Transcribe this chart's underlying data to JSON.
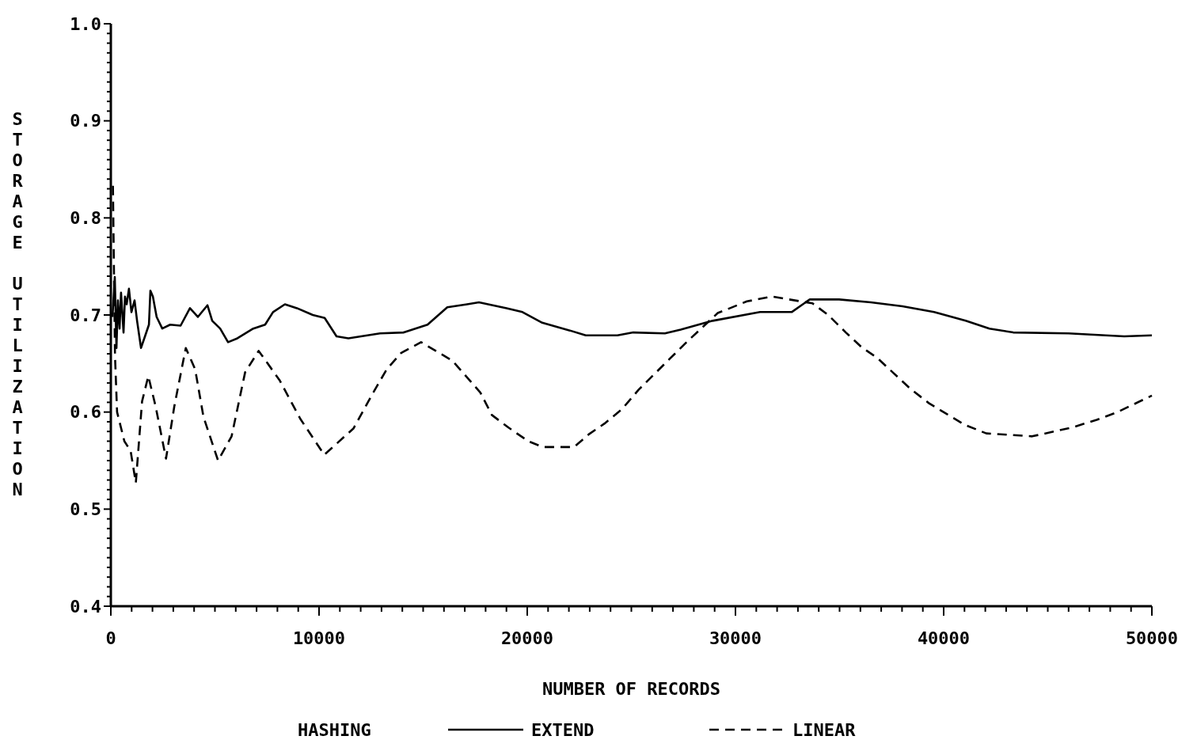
{
  "chart_data": {
    "type": "line",
    "xlabel": "NUMBER OF RECORDS",
    "ylabel": "STORAGE UTILIZATION",
    "legend_title": "HASHING",
    "legend": "bottom",
    "xlim": [
      0,
      50000
    ],
    "ylim": [
      0.4,
      1.0
    ],
    "xticks": [
      0,
      {
        "value": 1000,
        "label": null
      },
      {
        "value": 2000,
        "label": null
      },
      {
        "value": 3000,
        "label": null
      },
      {
        "value": 4000,
        "label": null
      },
      {
        "value": 5000,
        "label": null
      },
      {
        "value": 6000,
        "label": null
      },
      {
        "value": 7000,
        "label": null
      },
      {
        "value": 8000,
        "label": null
      },
      {
        "value": 9000,
        "label": null
      },
      10000,
      {
        "value": 11000,
        "label": null
      },
      {
        "value": 12000,
        "label": null
      },
      {
        "value": 13000,
        "label": null
      },
      {
        "value": 14000,
        "label": null
      },
      {
        "value": 15000,
        "label": null
      },
      {
        "value": 16000,
        "label": null
      },
      {
        "value": 17000,
        "label": null
      },
      {
        "value": 18000,
        "label": null
      },
      {
        "value": 19000,
        "label": null
      },
      20000,
      {
        "value": 21000,
        "label": null
      },
      {
        "value": 22000,
        "label": null
      },
      {
        "value": 23000,
        "label": null
      },
      {
        "value": 24000,
        "label": null
      },
      {
        "value": 25000,
        "label": null
      },
      {
        "value": 26000,
        "label": null
      },
      {
        "value": 27000,
        "label": null
      },
      {
        "value": 28000,
        "label": null
      },
      {
        "value": 29000,
        "label": null
      },
      30000,
      {
        "value": 31000,
        "label": null
      },
      {
        "value": 32000,
        "label": null
      },
      {
        "value": 33000,
        "label": null
      },
      {
        "value": 34000,
        "label": null
      },
      {
        "value": 35000,
        "label": null
      },
      {
        "value": 36000,
        "label": null
      },
      {
        "value": 37000,
        "label": null
      },
      {
        "value": 38000,
        "label": null
      },
      {
        "value": 39000,
        "label": null
      },
      40000,
      {
        "value": 41000,
        "label": null
      },
      {
        "value": 42000,
        "label": null
      },
      {
        "value": 43000,
        "label": null
      },
      {
        "value": 44000,
        "label": null
      },
      {
        "value": 45000,
        "label": null
      },
      {
        "value": 46000,
        "label": null
      },
      {
        "value": 47000,
        "label": null
      },
      {
        "value": 48000,
        "label": null
      },
      {
        "value": 49000,
        "label": null
      },
      50000
    ],
    "yticks": [
      0.4,
      {
        "value": 0.41,
        "label": null
      },
      {
        "value": 0.42,
        "label": null
      },
      {
        "value": 0.43,
        "label": null
      },
      {
        "value": 0.44,
        "label": null
      },
      {
        "value": 0.45,
        "label": null
      },
      {
        "value": 0.46,
        "label": null
      },
      {
        "value": 0.47,
        "label": null
      },
      {
        "value": 0.48,
        "label": null
      },
      {
        "value": 0.49,
        "label": null
      },
      0.5,
      {
        "value": 0.51,
        "label": null
      },
      {
        "value": 0.52,
        "label": null
      },
      {
        "value": 0.53,
        "label": null
      },
      {
        "value": 0.54,
        "label": null
      },
      {
        "value": 0.55,
        "label": null
      },
      {
        "value": 0.56,
        "label": null
      },
      {
        "value": 0.57,
        "label": null
      },
      {
        "value": 0.58,
        "label": null
      },
      {
        "value": 0.59,
        "label": null
      },
      0.6,
      {
        "value": 0.61,
        "label": null
      },
      {
        "value": 0.62,
        "label": null
      },
      {
        "value": 0.63,
        "label": null
      },
      {
        "value": 0.64,
        "label": null
      },
      {
        "value": 0.65,
        "label": null
      },
      {
        "value": 0.66,
        "label": null
      },
      {
        "value": 0.67,
        "label": null
      },
      {
        "value": 0.68,
        "label": null
      },
      {
        "value": 0.69,
        "label": null
      },
      0.7,
      {
        "value": 0.71,
        "label": null
      },
      {
        "value": 0.72,
        "label": null
      },
      {
        "value": 0.73,
        "label": null
      },
      {
        "value": 0.74,
        "label": null
      },
      {
        "value": 0.75,
        "label": null
      },
      {
        "value": 0.76,
        "label": null
      },
      {
        "value": 0.77,
        "label": null
      },
      {
        "value": 0.78,
        "label": null
      },
      {
        "value": 0.79,
        "label": null
      },
      0.8,
      {
        "value": 0.81,
        "label": null
      },
      {
        "value": 0.82,
        "label": null
      },
      {
        "value": 0.83,
        "label": null
      },
      {
        "value": 0.84,
        "label": null
      },
      {
        "value": 0.85,
        "label": null
      },
      {
        "value": 0.86,
        "label": null
      },
      {
        "value": 0.87,
        "label": null
      },
      {
        "value": 0.88,
        "label": null
      },
      {
        "value": 0.89,
        "label": null
      },
      0.9,
      {
        "value": 0.91,
        "label": null
      },
      {
        "value": 0.92,
        "label": null
      },
      {
        "value": 0.93,
        "label": null
      },
      {
        "value": 0.94,
        "label": null
      },
      {
        "value": 0.95,
        "label": null
      },
      {
        "value": 0.96,
        "label": null
      },
      {
        "value": 0.97,
        "label": null
      },
      {
        "value": 0.98,
        "label": null
      },
      {
        "value": 0.99,
        "label": null
      },
      {
        "value": 1.0,
        "label": "1.0"
      }
    ],
    "series": [
      {
        "name": "EXTEND",
        "color": "#000000",
        "line_style": "solid",
        "x": [
          80,
          190,
          270,
          340,
          420,
          490,
          610,
          680,
          760,
          870,
          990,
          1140,
          1260,
          1450,
          1640,
          1830,
          1900,
          2020,
          2200,
          2470,
          2850,
          3350,
          3800,
          4180,
          4640,
          4870,
          5250,
          5630,
          6080,
          6840,
          7410,
          7790,
          8360,
          8940,
          9700,
          10270,
          10840,
          11410,
          12930,
          14070,
          15210,
          16160,
          17110,
          17680,
          19010,
          19770,
          20720,
          22050,
          22810,
          24330,
          25090,
          26610,
          27370,
          28900,
          31180,
          32700,
          33570,
          34980,
          36500,
          38020,
          39540,
          41060,
          42200,
          43340,
          46000,
          48670,
          50000
        ],
        "values": [
          0.698,
          0.739,
          0.666,
          0.715,
          0.686,
          0.723,
          0.682,
          0.719,
          0.711,
          0.727,
          0.703,
          0.715,
          0.694,
          0.666,
          0.678,
          0.69,
          0.725,
          0.719,
          0.698,
          0.686,
          0.69,
          0.689,
          0.707,
          0.698,
          0.71,
          0.694,
          0.686,
          0.672,
          0.676,
          0.686,
          0.69,
          0.703,
          0.711,
          0.707,
          0.7,
          0.697,
          0.678,
          0.676,
          0.681,
          0.682,
          0.69,
          0.708,
          0.711,
          0.713,
          0.707,
          0.703,
          0.692,
          0.684,
          0.679,
          0.679,
          0.682,
          0.681,
          0.685,
          0.694,
          0.703,
          0.703,
          0.716,
          0.716,
          0.713,
          0.709,
          0.703,
          0.694,
          0.686,
          0.682,
          0.681,
          0.678,
          0.679
        ]
      },
      {
        "name": "LINEAR",
        "color": "#000000",
        "line_style": "dashed",
        "x": [
          100,
          200,
          300,
          650,
          950,
          1200,
          1500,
          1800,
          2150,
          2650,
          3050,
          3600,
          4050,
          4450,
          5150,
          5800,
          6450,
          7100,
          8100,
          9100,
          10250,
          11650,
          12600,
          13250,
          13950,
          14900,
          16400,
          17750,
          18300,
          19100,
          20050,
          20750,
          22250,
          22950,
          23700,
          24550,
          25350,
          26050,
          26850,
          27700,
          29150,
          30550,
          31750,
          33700,
          34450,
          35300,
          36050,
          36800,
          37600,
          38400,
          39300,
          40150,
          41000,
          42050,
          44250,
          46150,
          47350,
          48350,
          50000
        ],
        "values": [
          0.833,
          0.658,
          0.6,
          0.57,
          0.56,
          0.527,
          0.611,
          0.637,
          0.606,
          0.552,
          0.606,
          0.666,
          0.644,
          0.595,
          0.55,
          0.575,
          0.641,
          0.663,
          0.633,
          0.593,
          0.556,
          0.583,
          0.62,
          0.644,
          0.661,
          0.672,
          0.653,
          0.62,
          0.597,
          0.584,
          0.57,
          0.564,
          0.564,
          0.577,
          0.588,
          0.603,
          0.623,
          0.638,
          0.655,
          0.673,
          0.702,
          0.714,
          0.719,
          0.712,
          0.7,
          0.682,
          0.667,
          0.656,
          0.64,
          0.624,
          0.609,
          0.598,
          0.587,
          0.578,
          0.575,
          0.584,
          0.592,
          0.6,
          0.617
        ]
      }
    ]
  }
}
